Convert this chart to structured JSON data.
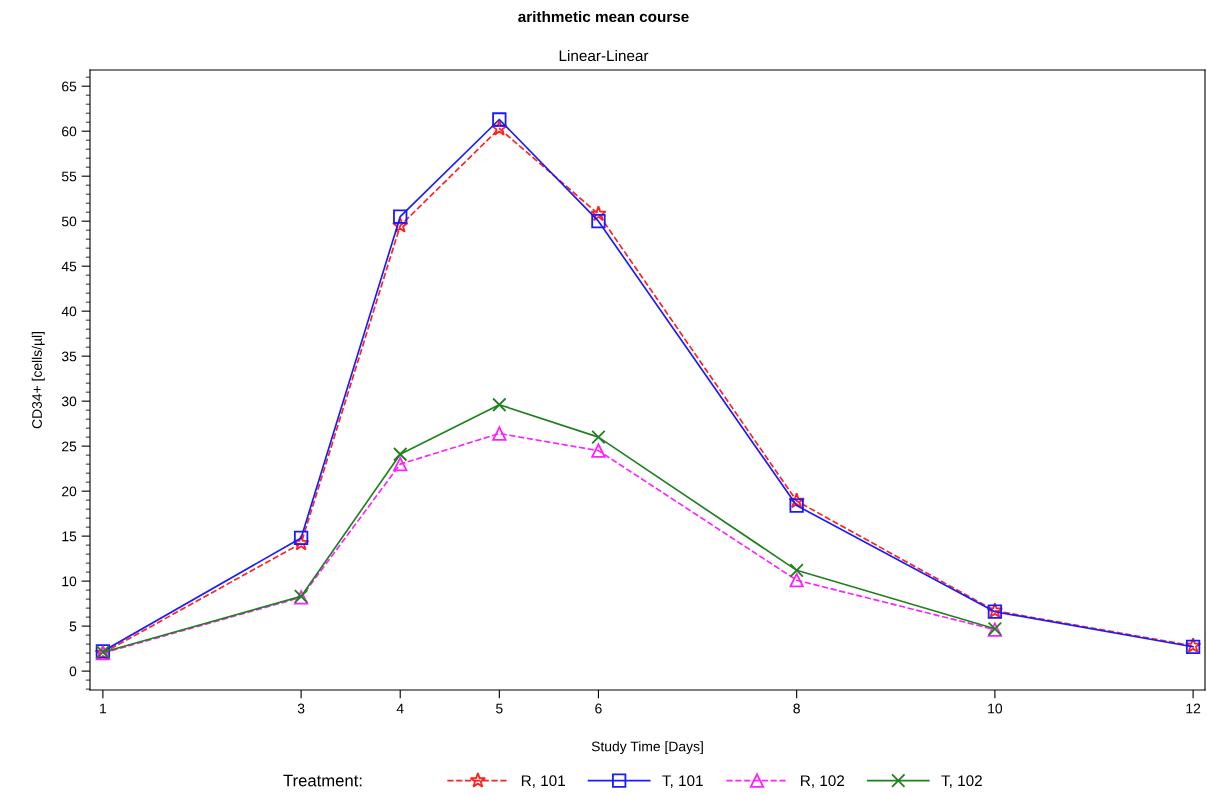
{
  "chart_data": {
    "type": "line",
    "title": "arithmetic mean course",
    "subtitle": "Linear-Linear",
    "xlabel": "Study Time [Days]",
    "ylabel": "CD34+ [cells/µl]",
    "legend_title": "Treatment:",
    "legend": "bottom",
    "grid": false,
    "xlim": [
      0.87,
      12.12
    ],
    "xticks": [
      1,
      3,
      4,
      5,
      6,
      8,
      10,
      12
    ],
    "ylim": [
      -2.1,
      66.8
    ],
    "yticks": [
      0,
      5,
      10,
      15,
      20,
      25,
      30,
      35,
      40,
      45,
      50,
      55,
      60,
      65
    ],
    "series": [
      {
        "name": "R, 101",
        "color": "#ff2020",
        "marker": "star",
        "line_style": "dashed",
        "x": [
          1,
          3,
          4,
          5,
          6,
          8,
          10,
          12
        ],
        "values": [
          2.0,
          14.2,
          49.5,
          60.3,
          50.8,
          18.9,
          6.7,
          2.8
        ]
      },
      {
        "name": "T, 101",
        "color": "#1a1aff",
        "marker": "square",
        "line_style": "solid",
        "x": [
          1,
          3,
          4,
          5,
          6,
          8,
          10,
          12
        ],
        "values": [
          2.2,
          14.8,
          50.5,
          61.3,
          50.0,
          18.4,
          6.6,
          2.7
        ]
      },
      {
        "name": "R, 102",
        "color": "#ff20ff",
        "marker": "triangle",
        "line_style": "dashed",
        "x": [
          1,
          3,
          4,
          5,
          6,
          8,
          10
        ],
        "values": [
          2.0,
          8.2,
          23.0,
          26.4,
          24.5,
          10.1,
          4.6
        ]
      },
      {
        "name": "T, 102",
        "color": "#208020",
        "marker": "cross",
        "line_style": "solid",
        "x": [
          1,
          3,
          4,
          5,
          6,
          8,
          10
        ],
        "values": [
          2.1,
          8.3,
          24.1,
          29.6,
          26.0,
          11.2,
          4.7
        ]
      }
    ]
  }
}
